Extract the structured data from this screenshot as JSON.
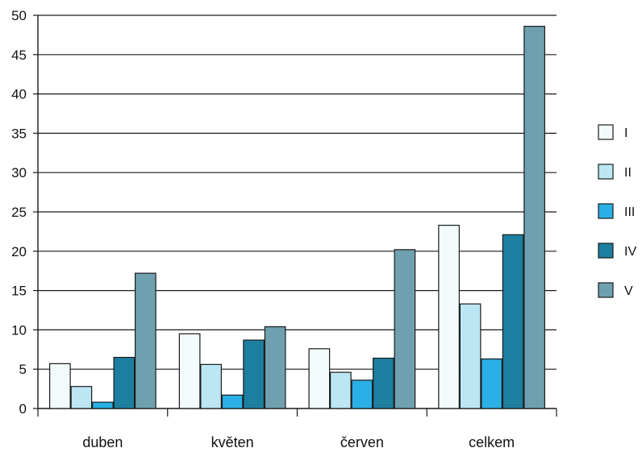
{
  "chart_data": {
    "type": "bar",
    "title": "",
    "xlabel": "",
    "ylabel": "",
    "ylim": [
      0,
      50
    ],
    "yticks": [
      0,
      5,
      10,
      15,
      20,
      25,
      30,
      35,
      40,
      45,
      50
    ],
    "grid": true,
    "legend_position": "right",
    "categories": [
      "duben",
      "květen",
      "červen",
      "celkem"
    ],
    "series": [
      {
        "name": "I",
        "color": "#f2fafc",
        "values": [
          5.7,
          9.5,
          7.6,
          23.3
        ]
      },
      {
        "name": "II",
        "color": "#bde6f4",
        "values": [
          2.8,
          5.6,
          4.6,
          13.3
        ]
      },
      {
        "name": "III",
        "color": "#2ab0e6",
        "values": [
          0.8,
          1.7,
          3.6,
          6.3
        ]
      },
      {
        "name": "IV",
        "color": "#1d7fa0",
        "values": [
          6.5,
          8.7,
          6.4,
          22.1
        ]
      },
      {
        "name": "V",
        "color": "#6fa0b0",
        "values": [
          17.2,
          10.4,
          20.2,
          48.6
        ]
      }
    ]
  }
}
